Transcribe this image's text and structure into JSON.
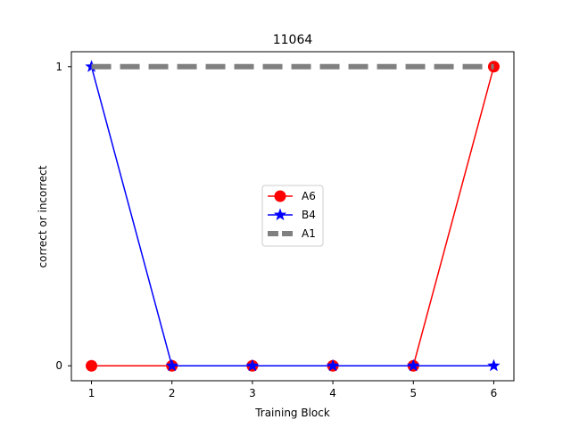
{
  "chart_data": {
    "type": "line",
    "title": "11064",
    "xlabel": "Training Block",
    "ylabel": "correct or incorrect",
    "x": [
      1,
      2,
      3,
      4,
      5,
      6
    ],
    "xticks": [
      "1",
      "2",
      "3",
      "4",
      "5",
      "6"
    ],
    "yticks": [
      "0",
      "1"
    ],
    "xlim": [
      0.75,
      6.25
    ],
    "ylim": [
      -0.05,
      1.05
    ],
    "grid": false,
    "legend_position": "center",
    "series": [
      {
        "name": "A6",
        "values": [
          0,
          0,
          0,
          0,
          0,
          1
        ],
        "color": "#ff0000",
        "marker": "circle",
        "style": "solid"
      },
      {
        "name": "B4",
        "values": [
          1,
          0,
          0,
          0,
          0,
          0
        ],
        "color": "#0000ff",
        "marker": "star",
        "style": "solid"
      },
      {
        "name": "A1",
        "values": [
          1,
          1,
          1,
          1,
          1,
          1
        ],
        "color": "#808080",
        "marker": "none",
        "style": "dashed"
      }
    ]
  }
}
